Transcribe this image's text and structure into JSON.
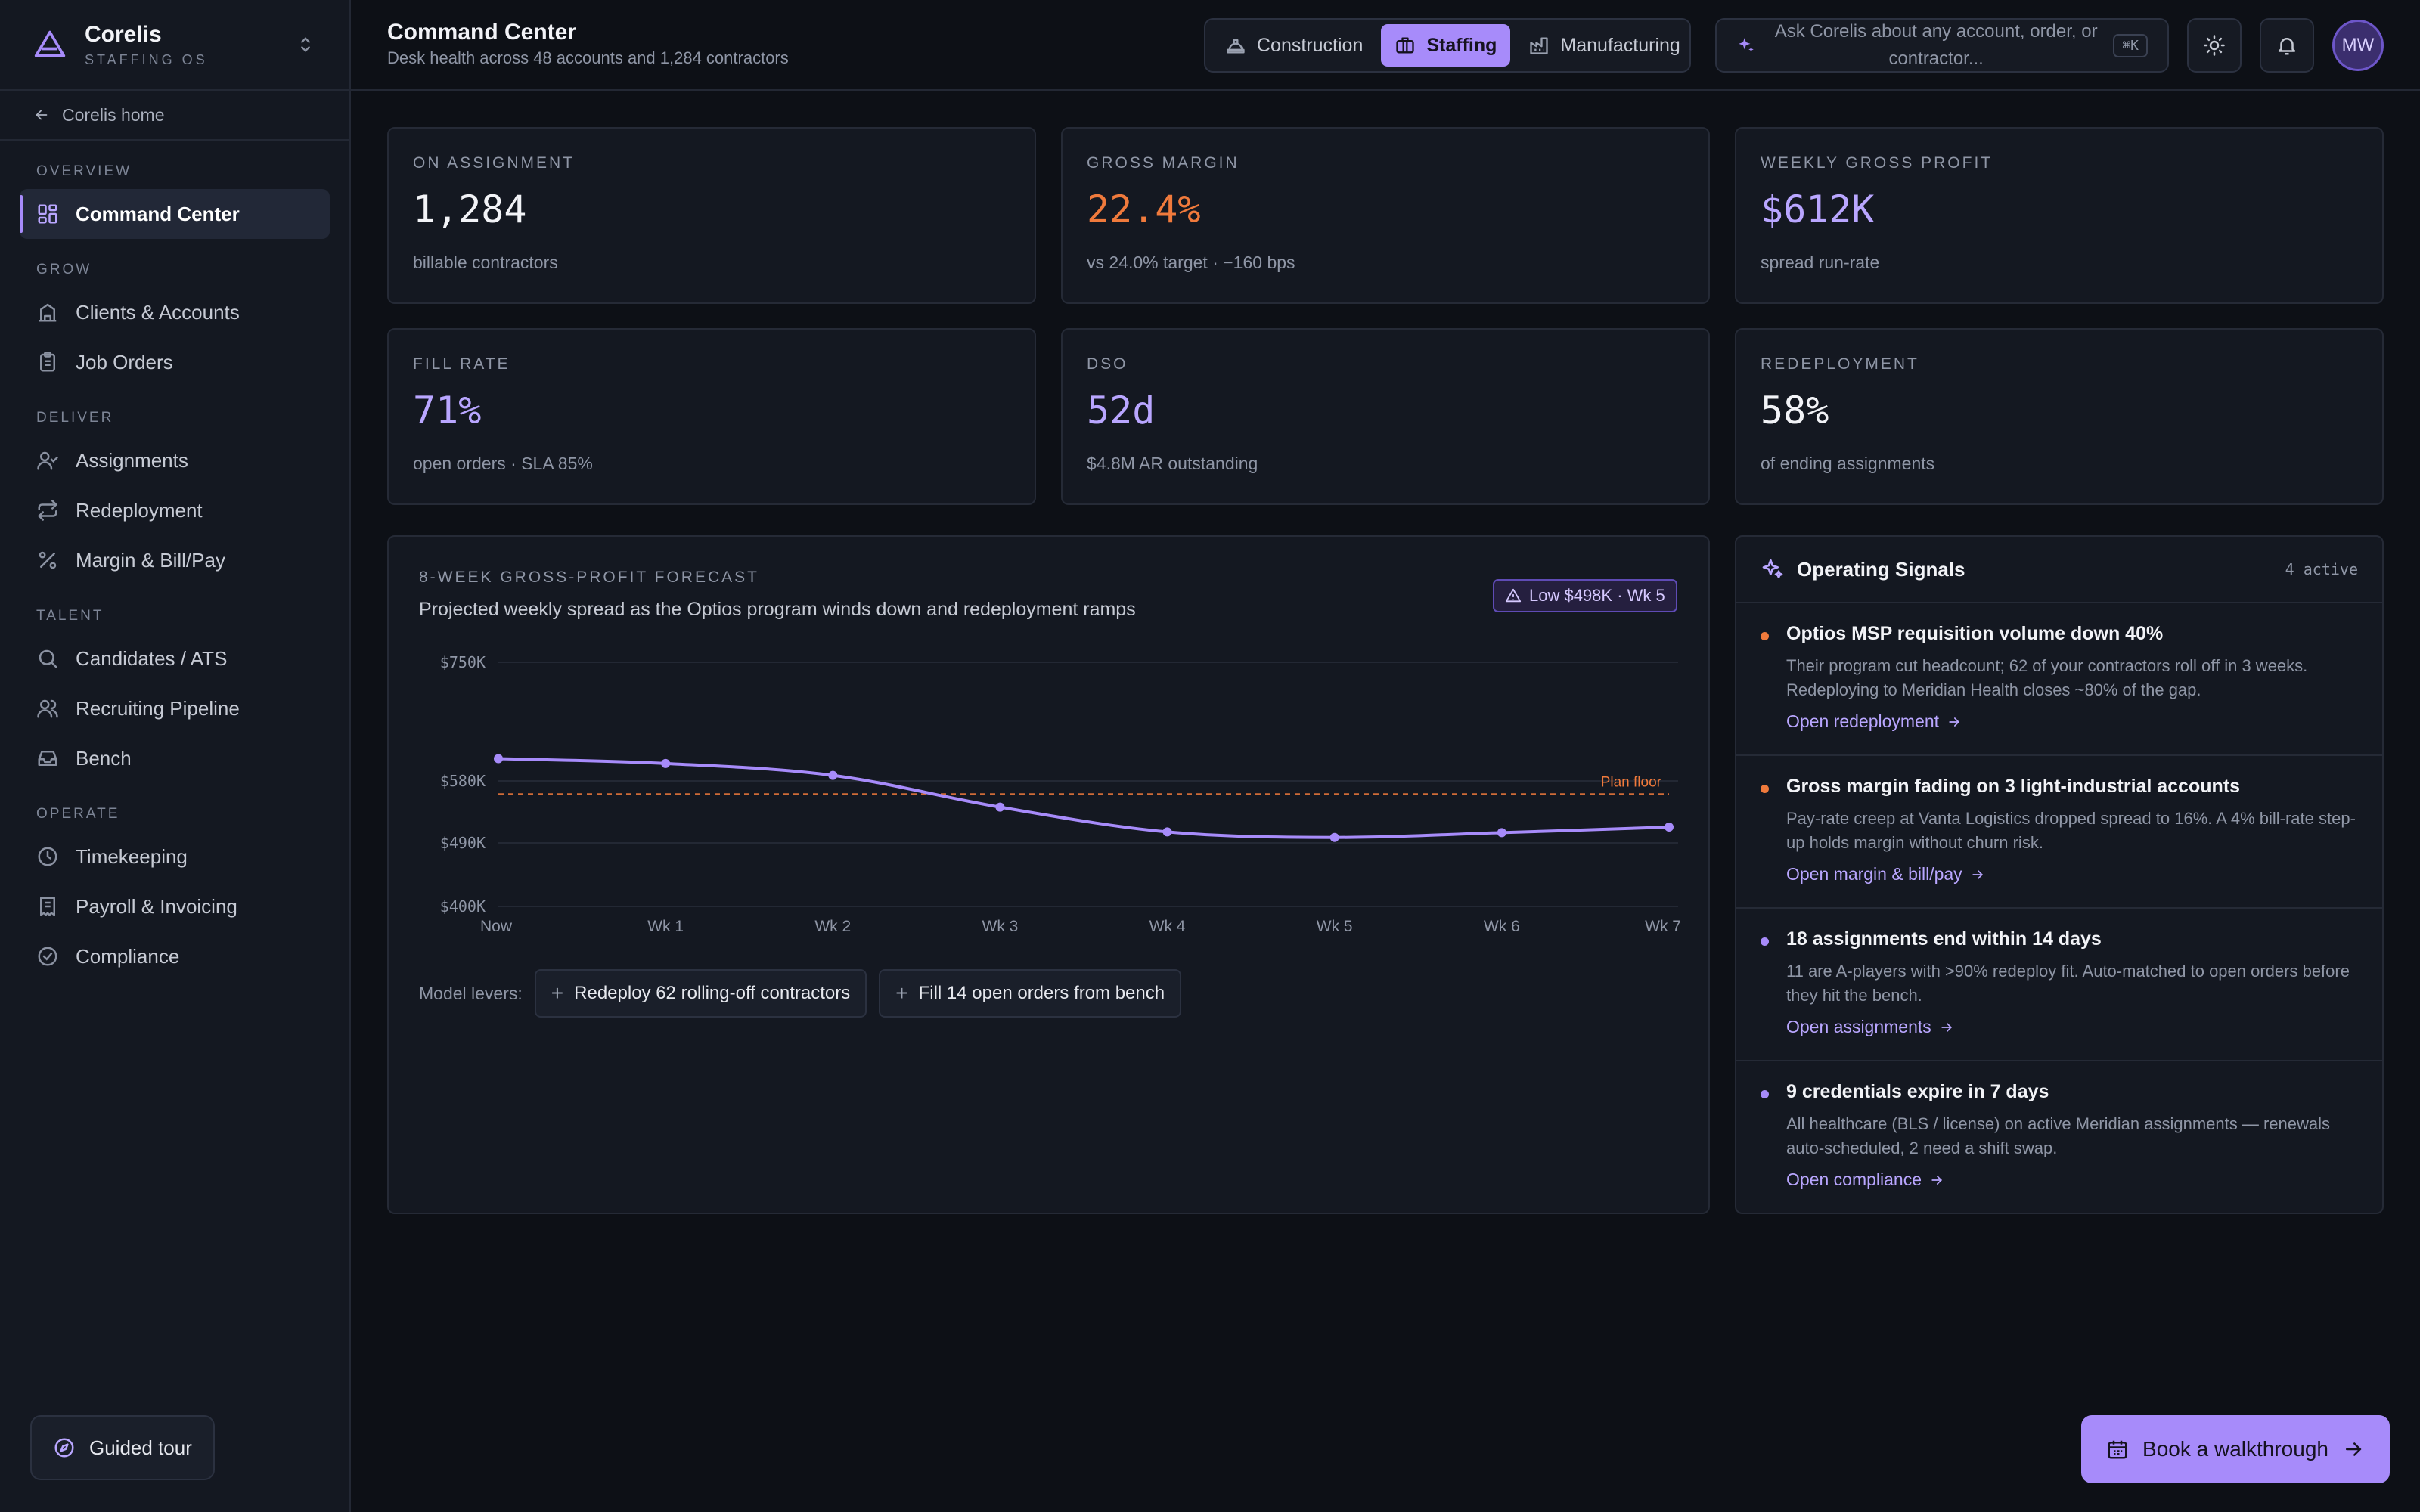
{
  "brand": {
    "name": "Corelis",
    "sub": "STAFFING OS"
  },
  "sidebar": {
    "home_link": "Corelis home",
    "groups": [
      {
        "label": "OVERVIEW",
        "items": [
          {
            "label": "Command Center",
            "icon": "grid-icon"
          }
        ]
      },
      {
        "label": "GROW",
        "items": [
          {
            "label": "Clients & Accounts",
            "icon": "building-icon"
          },
          {
            "label": "Job Orders",
            "icon": "clipboard-icon"
          }
        ]
      },
      {
        "label": "DELIVER",
        "items": [
          {
            "label": "Assignments",
            "icon": "user-check-icon"
          },
          {
            "label": "Redeployment",
            "icon": "repeat-icon"
          },
          {
            "label": "Margin & Bill/Pay",
            "icon": "percent-icon"
          }
        ]
      },
      {
        "label": "TALENT",
        "items": [
          {
            "label": "Candidates / ATS",
            "icon": "search-icon"
          },
          {
            "label": "Recruiting Pipeline",
            "icon": "users-icon"
          },
          {
            "label": "Bench",
            "icon": "inbox-icon"
          }
        ]
      },
      {
        "label": "OPERATE",
        "items": [
          {
            "label": "Timekeeping",
            "icon": "clock-icon"
          },
          {
            "label": "Payroll & Invoicing",
            "icon": "receipt-icon"
          },
          {
            "label": "Compliance",
            "icon": "check-circle-icon"
          }
        ]
      }
    ],
    "guided_tour": "Guided tour"
  },
  "header": {
    "title": "Command Center",
    "subtitle": "Desk health across 48 accounts and 1,284 contractors",
    "verticals": [
      {
        "label": "Construction",
        "active": false
      },
      {
        "label": "Staffing",
        "active": true
      },
      {
        "label": "Manufacturing",
        "active": false
      }
    ],
    "ask_placeholder": "Ask Corelis about any account, order, or contractor...",
    "ask_shortcut": "⌘K",
    "avatar_initials": "MW"
  },
  "kpis": [
    {
      "label": "ON ASSIGNMENT",
      "value": "1,284",
      "sub": "billable contractors",
      "color": "#f2f3f7"
    },
    {
      "label": "GROSS MARGIN",
      "value": "22.4%",
      "sub": "vs 24.0% target · −160 bps",
      "color": "#f07a3c"
    },
    {
      "label": "WEEKLY GROSS PROFIT",
      "value": "$612K",
      "sub": "spread run-rate",
      "color": "#b9a6ff"
    },
    {
      "label": "FILL RATE",
      "value": "71%",
      "sub": "open orders · SLA 85%",
      "color": "#b9a6ff"
    },
    {
      "label": "DSO",
      "value": "52d",
      "sub": "$4.8M AR outstanding",
      "color": "#b9a6ff"
    },
    {
      "label": "REDEPLOYMENT",
      "value": "58%",
      "sub": "of ending assignments",
      "color": "#f2f3f7"
    }
  ],
  "forecast": {
    "label": "8-WEEK GROSS-PROFIT FORECAST",
    "title": "Projected weekly spread as the Optios program winds down and redeployment ramps",
    "badge": "Low $498K · Wk 5",
    "levers_label": "Model levers:",
    "levers": [
      "Redeploy 62 rolling-off contractors",
      "Fill 14 open orders from bench"
    ]
  },
  "chart_data": {
    "type": "line",
    "x": [
      "Now",
      "Wk 1",
      "Wk 2",
      "Wk 3",
      "Wk 4",
      "Wk 5",
      "Wk 6",
      "Wk 7"
    ],
    "series": [
      {
        "values": [
          612,
          605,
          588,
          542,
          506,
          498,
          505,
          513
        ],
        "color": "#a78bfa"
      }
    ],
    "y_ticks": [
      {
        "value": 750,
        "label": "$750K"
      },
      {
        "value": 580,
        "label": "$580K"
      },
      {
        "value": 490,
        "label": "$490K"
      },
      {
        "value": 400,
        "label": "$400K"
      }
    ],
    "ylim": [
      400,
      750
    ],
    "reference_line": {
      "value": 561,
      "label": "Plan floor",
      "color": "#f07a3c"
    },
    "grid": true
  },
  "signals": {
    "title": "Operating Signals",
    "count": "4 active",
    "items": [
      {
        "title": "Optios MSP requisition volume down 40%",
        "body": "Their program cut headcount; 62 of your contractors roll off in 3 weeks. Redeploying to Meridian Health closes ~80% of the gap.",
        "link": "Open redeployment",
        "color": "#f07a3c"
      },
      {
        "title": "Gross margin fading on 3 light-industrial accounts",
        "body": "Pay-rate creep at Vanta Logistics dropped spread to 16%. A 4% bill-rate step-up holds margin without churn risk.",
        "link": "Open margin & bill/pay",
        "color": "#f07a3c"
      },
      {
        "title": "18 assignments end within 14 days",
        "body": "11 are A-players with >90% redeploy fit. Auto-matched to open orders before they hit the bench.",
        "link": "Open assignments",
        "color": "#a78bfa"
      },
      {
        "title": "9 credentials expire in 7 days",
        "body": "All healthcare (BLS / license) on active Meridian assignments — renewals auto-scheduled, 2 need a shift swap.",
        "link": "Open compliance",
        "color": "#a78bfa"
      }
    ]
  },
  "cta": {
    "label": "Book a walkthrough"
  }
}
